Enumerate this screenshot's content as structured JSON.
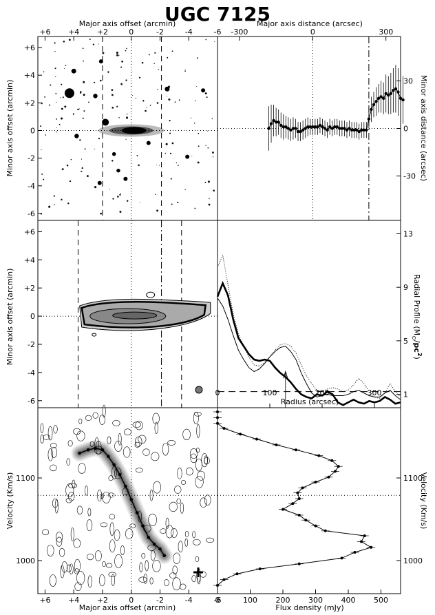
{
  "title": "UGC 7125",
  "chart_data": [
    {
      "type": "image",
      "panel": "optical-image",
      "xlabel_top": "Major axis offset (arcmin)",
      "ylabel": "Minor axis offset (arcmin)",
      "xlim": [
        6.5,
        -6.0
      ],
      "ylim": [
        -6.5,
        6.8
      ],
      "xticks": [
        {
          "value": 6,
          "label": "+6"
        },
        {
          "value": 4,
          "label": "+4"
        },
        {
          "value": 2,
          "label": "+2"
        },
        {
          "value": 0,
          "label": "0"
        },
        {
          "value": -2,
          "label": "-2"
        },
        {
          "value": -4,
          "label": "-4"
        },
        {
          "value": -6,
          "label": "-6"
        }
      ],
      "yticks": [
        {
          "value": 6,
          "label": "+6"
        },
        {
          "value": 4,
          "label": "+4"
        },
        {
          "value": 2,
          "label": "+2"
        },
        {
          "value": 0,
          "label": "0"
        },
        {
          "value": -2,
          "label": "-2"
        },
        {
          "value": -4,
          "label": "-4"
        },
        {
          "value": -6,
          "label": "-6"
        }
      ],
      "dashed_lines_x": [
        2.0,
        -2.1
      ],
      "galaxy_center": [
        0,
        0
      ],
      "stars": [
        {
          "x": 4.3,
          "y": 2.7,
          "size": 1.0
        },
        {
          "x": 1.8,
          "y": 0.6,
          "size": 0.6
        },
        {
          "x": 4.0,
          "y": 4.3,
          "size": 0.3
        },
        {
          "x": 2.1,
          "y": 5.0,
          "size": 0.2
        },
        {
          "x": 2.5,
          "y": 2.5,
          "size": 0.25
        },
        {
          "x": -2.5,
          "y": 3.0,
          "size": 0.3
        },
        {
          "x": -5.0,
          "y": 2.9,
          "size": 0.2
        },
        {
          "x": 3.8,
          "y": -0.4,
          "size": 0.25
        },
        {
          "x": 2.2,
          "y": -3.8,
          "size": 0.2
        },
        {
          "x": 0.4,
          "y": -3.5,
          "size": 0.2
        },
        {
          "x": -1.2,
          "y": -0.9,
          "size": 0.2
        },
        {
          "x": -3.9,
          "y": -1.9,
          "size": 0.2
        },
        {
          "x": 1.2,
          "y": -1.7,
          "size": 0.15
        },
        {
          "x": 0.9,
          "y": -2.9,
          "size": 0.15
        }
      ]
    },
    {
      "type": "scatter",
      "panel": "minor-axis-distance",
      "xlabel_top": "Major axis distance (arcsec)",
      "ylabel_right": "Minor axis distance (arcsec)",
      "xlim": [
        -390,
        360
      ],
      "ylim": [
        -58,
        58
      ],
      "xticks": [
        -300,
        0,
        300
      ],
      "yticks": [
        -30,
        0,
        30
      ],
      "dashed_line_x": 230,
      "dotted_line_x": 0,
      "x": [
        -180,
        -170,
        -160,
        -150,
        -140,
        -130,
        -120,
        -110,
        -100,
        -90,
        -80,
        -70,
        -60,
        -50,
        -40,
        -30,
        -20,
        -10,
        0,
        10,
        20,
        30,
        40,
        50,
        60,
        70,
        80,
        90,
        100,
        110,
        120,
        130,
        140,
        150,
        160,
        170,
        180,
        190,
        200,
        210,
        220,
        230,
        240,
        250,
        260,
        270,
        280,
        290,
        300,
        310,
        320,
        330,
        340,
        350,
        360,
        370
      ],
      "y": [
        0,
        3,
        5,
        4,
        4,
        2,
        1,
        1,
        0,
        -1,
        0,
        0,
        -2,
        -2,
        -1,
        0,
        1,
        1,
        1,
        1,
        1,
        2,
        1,
        0,
        -1,
        1,
        0,
        1,
        1,
        0,
        0,
        0,
        -1,
        0,
        -1,
        -1,
        -1,
        -2,
        -1,
        -1,
        -1,
        6,
        12,
        15,
        17,
        19,
        20,
        19,
        22,
        21,
        22,
        24,
        25,
        23,
        19,
        18
      ],
      "err": [
        14,
        12,
        10,
        9,
        8,
        8,
        8,
        7,
        7,
        7,
        7,
        6,
        6,
        6,
        6,
        6,
        6,
        5,
        5,
        5,
        5,
        5,
        5,
        5,
        5,
        5,
        5,
        5,
        5,
        5,
        5,
        5,
        5,
        5,
        5,
        5,
        5,
        5,
        5,
        5,
        5,
        6,
        8,
        8,
        9,
        9,
        10,
        10,
        12,
        12,
        13,
        14,
        15,
        15,
        15,
        15
      ]
    },
    {
      "type": "contour",
      "panel": "hi-total-map",
      "ylabel": "Minor axis offset (arcmin)",
      "xlim": [
        6.5,
        -6.0
      ],
      "ylim": [
        -6.5,
        6.8
      ],
      "yticks": [
        6,
        4,
        2,
        0,
        -2,
        -4,
        -6
      ],
      "dashed_lines_x": [
        3.7,
        -3.5
      ],
      "dashdot_line_x": -2.1,
      "dotted_line_x": 0,
      "dotted_line_y": 0
    },
    {
      "type": "line",
      "panel": "radial-profile",
      "xlabel": "Radius (arcsec)",
      "ylabel_right_prefix": "Radial Profile  (M",
      "ylabel_right_sub": "⊙",
      "ylabel_right_mid": "/",
      "ylabel_right_bold": "pc",
      "ylabel_right_sup": "2",
      "ylabel_right_end": ")",
      "xlim": [
        0,
        350
      ],
      "ylim": [
        0,
        14
      ],
      "xticks": [
        0,
        100,
        200,
        300
      ],
      "yticks": [
        1,
        5,
        9,
        13
      ],
      "dashed_line_y": 1.2,
      "arrow_x": 130,
      "series": [
        {
          "style": "thick",
          "x": [
            0,
            10,
            20,
            30,
            40,
            50,
            60,
            70,
            80,
            90,
            100,
            110,
            120,
            130,
            140,
            150,
            160,
            170,
            180,
            190,
            200,
            210,
            220,
            230,
            240,
            250,
            260,
            270,
            280,
            290,
            300,
            310,
            320,
            330,
            340,
            350
          ],
          "y": [
            8.3,
            9.3,
            8.4,
            6.6,
            5.2,
            4.6,
            4.0,
            3.6,
            3.5,
            3.6,
            3.5,
            3.0,
            2.6,
            2.3,
            1.9,
            1.4,
            1.0,
            0.8,
            0.7,
            1.0,
            0.9,
            1.2,
            1.0,
            0.4,
            0.2,
            0.4,
            0.6,
            0.4,
            0.3,
            0.5,
            0.4,
            0.5,
            0.8,
            0.6,
            0.3,
            0.4
          ]
        },
        {
          "style": "thin",
          "x": [
            0,
            10,
            20,
            30,
            40,
            50,
            60,
            70,
            80,
            90,
            100,
            110,
            120,
            130,
            140,
            150,
            160,
            170,
            180,
            190,
            200,
            210,
            220,
            230,
            240,
            250,
            260,
            270,
            280,
            290,
            300,
            310,
            320,
            330,
            340,
            350
          ],
          "y": [
            8.2,
            7.6,
            6.6,
            5.4,
            4.3,
            3.6,
            3.0,
            2.7,
            2.9,
            3.3,
            3.8,
            4.2,
            4.5,
            4.6,
            4.2,
            3.6,
            2.6,
            1.8,
            1.1,
            0.8,
            0.9,
            1.0,
            0.9,
            0.9,
            0.9,
            1.0,
            1.2,
            1.3,
            1.1,
            0.9,
            0.8,
            0.8,
            1.1,
            1.3,
            0.9,
            0.6
          ]
        },
        {
          "style": "dotted",
          "x": [
            0,
            10,
            20,
            30,
            40,
            50,
            60,
            70,
            80,
            90,
            100,
            110,
            120,
            130,
            140,
            150,
            160,
            170,
            180,
            190,
            200,
            210,
            220,
            230,
            240,
            250,
            260,
            270,
            280,
            290,
            300,
            310,
            320,
            330,
            340,
            350
          ],
          "y": [
            10.5,
            11.4,
            9.2,
            7.0,
            5.5,
            4.6,
            3.8,
            3.2,
            3.1,
            3.4,
            3.8,
            4.3,
            4.7,
            4.8,
            4.6,
            4.1,
            3.2,
            2.4,
            1.8,
            1.3,
            1.2,
            1.4,
            1.5,
            1.4,
            1.2,
            1.3,
            1.7,
            2.2,
            1.8,
            1.2,
            0.8,
            0.7,
            1.1,
            1.8,
            1.2,
            0.8
          ]
        }
      ]
    },
    {
      "type": "contour",
      "panel": "position-velocity",
      "xlabel": "Major axis offset (arcmin)",
      "ylabel": "Velocity (Km/s)",
      "xlim": [
        6.5,
        -6.0
      ],
      "ylim": [
        960,
        1185
      ],
      "xticks": [
        {
          "value": 6,
          "label": "+6"
        },
        {
          "value": 4,
          "label": "+4"
        },
        {
          "value": 2,
          "label": "+2"
        },
        {
          "value": 0,
          "label": "0"
        },
        {
          "value": -2,
          "label": "-2"
        },
        {
          "value": -4,
          "label": "-4"
        },
        {
          "value": -6,
          "label": "-6"
        }
      ],
      "yticks": [
        1000,
        1100
      ],
      "dotted_line_y": 1079,
      "rotation_curve_x": [
        3.6,
        3.0,
        2.5,
        2.0,
        1.6,
        1.2,
        0.8,
        0.4,
        0.0,
        -0.4,
        -0.8,
        -1.2,
        -1.6,
        -2.0,
        -2.3
      ],
      "rotation_curve_y": [
        1130,
        1134,
        1136,
        1134,
        1126,
        1116,
        1104,
        1090,
        1074,
        1058,
        1042,
        1028,
        1020,
        1014,
        1006
      ]
    },
    {
      "type": "line",
      "panel": "global-profile",
      "xlabel": "Flux density (mJy)",
      "ylabel_right": "Velocity (Km/s)",
      "xlim": [
        0,
        560
      ],
      "ylim": [
        960,
        1185
      ],
      "xticks": [
        0,
        100,
        200,
        300,
        400,
        500
      ],
      "yticks": [
        1000,
        1100
      ],
      "dotted_line_y": 1079,
      "velocity": [
        970,
        977,
        984,
        990,
        996,
        1003,
        1010,
        1016,
        1023,
        1030,
        1036,
        1042,
        1049,
        1055,
        1062,
        1069,
        1075,
        1082,
        1088,
        1095,
        1101,
        1108,
        1114,
        1121,
        1127,
        1134,
        1140,
        1147,
        1153,
        1160,
        1166,
        1173,
        1180
      ],
      "flux": [
        0,
        20,
        60,
        130,
        250,
        380,
        420,
        470,
        440,
        450,
        330,
        300,
        270,
        250,
        200,
        230,
        250,
        245,
        260,
        300,
        340,
        360,
        370,
        350,
        310,
        240,
        180,
        120,
        70,
        20,
        0,
        0,
        0
      ]
    }
  ]
}
